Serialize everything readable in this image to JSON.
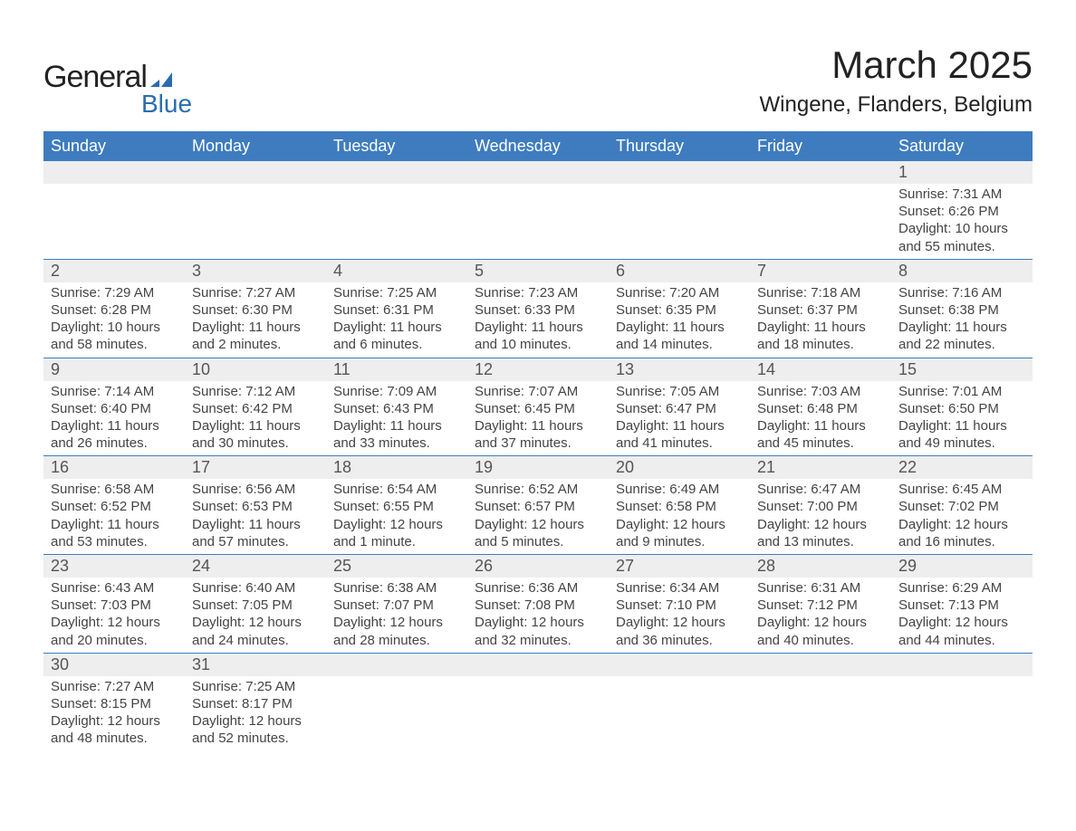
{
  "logo": {
    "text1": "General",
    "text2": "Blue",
    "accent": "#2a6cb0"
  },
  "title": "March 2025",
  "location": "Wingene, Flanders, Belgium",
  "colors": {
    "header_bg": "#3e7cbf",
    "header_fg": "#ffffff",
    "daynum_bg": "#eeeeee",
    "row_border": "#3e7cbf",
    "text": "#444444",
    "background": "#ffffff"
  },
  "layout": {
    "columns": 7,
    "rows": 6
  },
  "weekdays": [
    "Sunday",
    "Monday",
    "Tuesday",
    "Wednesday",
    "Thursday",
    "Friday",
    "Saturday"
  ],
  "weeks": [
    [
      null,
      null,
      null,
      null,
      null,
      null,
      {
        "n": "1",
        "sr": "Sunrise: 7:31 AM",
        "ss": "Sunset: 6:26 PM",
        "dl1": "Daylight: 10 hours",
        "dl2": "and 55 minutes."
      }
    ],
    [
      {
        "n": "2",
        "sr": "Sunrise: 7:29 AM",
        "ss": "Sunset: 6:28 PM",
        "dl1": "Daylight: 10 hours",
        "dl2": "and 58 minutes."
      },
      {
        "n": "3",
        "sr": "Sunrise: 7:27 AM",
        "ss": "Sunset: 6:30 PM",
        "dl1": "Daylight: 11 hours",
        "dl2": "and 2 minutes."
      },
      {
        "n": "4",
        "sr": "Sunrise: 7:25 AM",
        "ss": "Sunset: 6:31 PM",
        "dl1": "Daylight: 11 hours",
        "dl2": "and 6 minutes."
      },
      {
        "n": "5",
        "sr": "Sunrise: 7:23 AM",
        "ss": "Sunset: 6:33 PM",
        "dl1": "Daylight: 11 hours",
        "dl2": "and 10 minutes."
      },
      {
        "n": "6",
        "sr": "Sunrise: 7:20 AM",
        "ss": "Sunset: 6:35 PM",
        "dl1": "Daylight: 11 hours",
        "dl2": "and 14 minutes."
      },
      {
        "n": "7",
        "sr": "Sunrise: 7:18 AM",
        "ss": "Sunset: 6:37 PM",
        "dl1": "Daylight: 11 hours",
        "dl2": "and 18 minutes."
      },
      {
        "n": "8",
        "sr": "Sunrise: 7:16 AM",
        "ss": "Sunset: 6:38 PM",
        "dl1": "Daylight: 11 hours",
        "dl2": "and 22 minutes."
      }
    ],
    [
      {
        "n": "9",
        "sr": "Sunrise: 7:14 AM",
        "ss": "Sunset: 6:40 PM",
        "dl1": "Daylight: 11 hours",
        "dl2": "and 26 minutes."
      },
      {
        "n": "10",
        "sr": "Sunrise: 7:12 AM",
        "ss": "Sunset: 6:42 PM",
        "dl1": "Daylight: 11 hours",
        "dl2": "and 30 minutes."
      },
      {
        "n": "11",
        "sr": "Sunrise: 7:09 AM",
        "ss": "Sunset: 6:43 PM",
        "dl1": "Daylight: 11 hours",
        "dl2": "and 33 minutes."
      },
      {
        "n": "12",
        "sr": "Sunrise: 7:07 AM",
        "ss": "Sunset: 6:45 PM",
        "dl1": "Daylight: 11 hours",
        "dl2": "and 37 minutes."
      },
      {
        "n": "13",
        "sr": "Sunrise: 7:05 AM",
        "ss": "Sunset: 6:47 PM",
        "dl1": "Daylight: 11 hours",
        "dl2": "and 41 minutes."
      },
      {
        "n": "14",
        "sr": "Sunrise: 7:03 AM",
        "ss": "Sunset: 6:48 PM",
        "dl1": "Daylight: 11 hours",
        "dl2": "and 45 minutes."
      },
      {
        "n": "15",
        "sr": "Sunrise: 7:01 AM",
        "ss": "Sunset: 6:50 PM",
        "dl1": "Daylight: 11 hours",
        "dl2": "and 49 minutes."
      }
    ],
    [
      {
        "n": "16",
        "sr": "Sunrise: 6:58 AM",
        "ss": "Sunset: 6:52 PM",
        "dl1": "Daylight: 11 hours",
        "dl2": "and 53 minutes."
      },
      {
        "n": "17",
        "sr": "Sunrise: 6:56 AM",
        "ss": "Sunset: 6:53 PM",
        "dl1": "Daylight: 11 hours",
        "dl2": "and 57 minutes."
      },
      {
        "n": "18",
        "sr": "Sunrise: 6:54 AM",
        "ss": "Sunset: 6:55 PM",
        "dl1": "Daylight: 12 hours",
        "dl2": "and 1 minute."
      },
      {
        "n": "19",
        "sr": "Sunrise: 6:52 AM",
        "ss": "Sunset: 6:57 PM",
        "dl1": "Daylight: 12 hours",
        "dl2": "and 5 minutes."
      },
      {
        "n": "20",
        "sr": "Sunrise: 6:49 AM",
        "ss": "Sunset: 6:58 PM",
        "dl1": "Daylight: 12 hours",
        "dl2": "and 9 minutes."
      },
      {
        "n": "21",
        "sr": "Sunrise: 6:47 AM",
        "ss": "Sunset: 7:00 PM",
        "dl1": "Daylight: 12 hours",
        "dl2": "and 13 minutes."
      },
      {
        "n": "22",
        "sr": "Sunrise: 6:45 AM",
        "ss": "Sunset: 7:02 PM",
        "dl1": "Daylight: 12 hours",
        "dl2": "and 16 minutes."
      }
    ],
    [
      {
        "n": "23",
        "sr": "Sunrise: 6:43 AM",
        "ss": "Sunset: 7:03 PM",
        "dl1": "Daylight: 12 hours",
        "dl2": "and 20 minutes."
      },
      {
        "n": "24",
        "sr": "Sunrise: 6:40 AM",
        "ss": "Sunset: 7:05 PM",
        "dl1": "Daylight: 12 hours",
        "dl2": "and 24 minutes."
      },
      {
        "n": "25",
        "sr": "Sunrise: 6:38 AM",
        "ss": "Sunset: 7:07 PM",
        "dl1": "Daylight: 12 hours",
        "dl2": "and 28 minutes."
      },
      {
        "n": "26",
        "sr": "Sunrise: 6:36 AM",
        "ss": "Sunset: 7:08 PM",
        "dl1": "Daylight: 12 hours",
        "dl2": "and 32 minutes."
      },
      {
        "n": "27",
        "sr": "Sunrise: 6:34 AM",
        "ss": "Sunset: 7:10 PM",
        "dl1": "Daylight: 12 hours",
        "dl2": "and 36 minutes."
      },
      {
        "n": "28",
        "sr": "Sunrise: 6:31 AM",
        "ss": "Sunset: 7:12 PM",
        "dl1": "Daylight: 12 hours",
        "dl2": "and 40 minutes."
      },
      {
        "n": "29",
        "sr": "Sunrise: 6:29 AM",
        "ss": "Sunset: 7:13 PM",
        "dl1": "Daylight: 12 hours",
        "dl2": "and 44 minutes."
      }
    ],
    [
      {
        "n": "30",
        "sr": "Sunrise: 7:27 AM",
        "ss": "Sunset: 8:15 PM",
        "dl1": "Daylight: 12 hours",
        "dl2": "and 48 minutes."
      },
      {
        "n": "31",
        "sr": "Sunrise: 7:25 AM",
        "ss": "Sunset: 8:17 PM",
        "dl1": "Daylight: 12 hours",
        "dl2": "and 52 minutes."
      },
      null,
      null,
      null,
      null,
      null
    ]
  ]
}
